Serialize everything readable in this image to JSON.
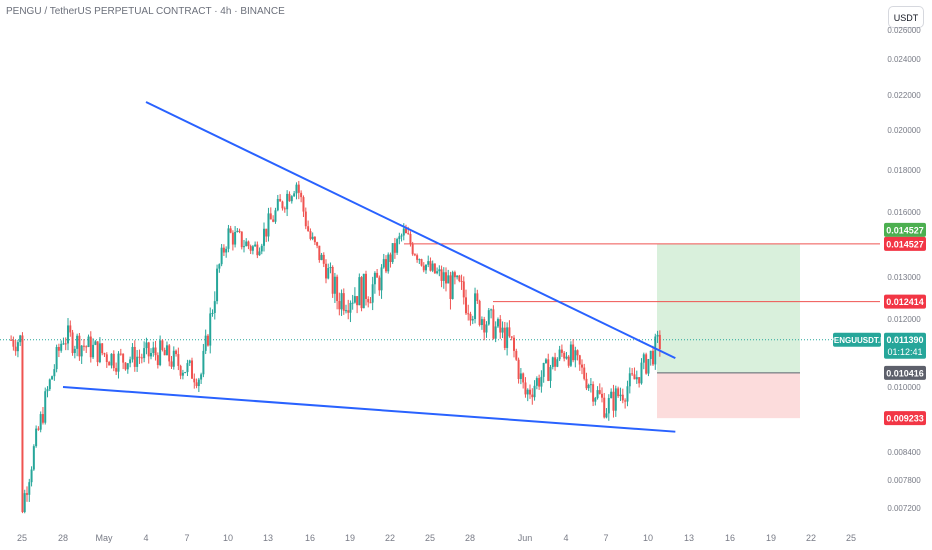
{
  "header": {
    "title": "PENGU / TetherUS PERPETUAL CONTRACT · 4h · BINANCE",
    "currency": "USDT"
  },
  "colors": {
    "up": "#26a69a",
    "down": "#ef5350",
    "trendline": "#2962ff",
    "target_zone": "#d9f0dc",
    "stop_zone": "#fcdcdc",
    "target_line": "#ef5350",
    "axis_text": "#787b86"
  },
  "chart_data": {
    "type": "candlestick",
    "symbol": "PENGUUSDT.P",
    "interval": "4h",
    "exchange": "BINANCE",
    "x_tick_labels": [
      "25",
      "28",
      "May",
      "4",
      "7",
      "10",
      "13",
      "16",
      "19",
      "22",
      "25",
      "28",
      "Jun",
      "4",
      "7",
      "10",
      "13",
      "16",
      "19",
      "22",
      "25"
    ],
    "y_tick_labels": [
      "0.026000",
      "0.024000",
      "0.022000",
      "0.020000",
      "0.018000",
      "0.016000",
      "0.013000",
      "0.012000",
      "0.010000",
      "0.008400",
      "0.007800",
      "0.007200"
    ],
    "ylim": [
      0.0068,
      0.0265
    ],
    "approx_close_path": [
      {
        "x": "Apr 25",
        "y": 0.0072
      },
      {
        "x": "Apr 28",
        "y": 0.0115
      },
      {
        "x": "May 1",
        "y": 0.0108
      },
      {
        "x": "May 4",
        "y": 0.011
      },
      {
        "x": "May 7",
        "y": 0.0103
      },
      {
        "x": "May 9",
        "y": 0.015
      },
      {
        "x": "May 11",
        "y": 0.0143
      },
      {
        "x": "May 14",
        "y": 0.0175
      },
      {
        "x": "May 15",
        "y": 0.0148
      },
      {
        "x": "May 17",
        "y": 0.0125
      },
      {
        "x": "May 20",
        "y": 0.0128
      },
      {
        "x": "May 22",
        "y": 0.015
      },
      {
        "x": "May 24",
        "y": 0.0133
      },
      {
        "x": "May 27",
        "y": 0.0124
      },
      {
        "x": "May 30",
        "y": 0.0113
      },
      {
        "x": "May 31",
        "y": 0.0098
      },
      {
        "x": "Jun 3",
        "y": 0.0111
      },
      {
        "x": "Jun 5",
        "y": 0.01
      },
      {
        "x": "Jun 6",
        "y": 0.0095
      },
      {
        "x": "Jun 8",
        "y": 0.0102
      },
      {
        "x": "Jun 10",
        "y": 0.01139
      }
    ],
    "trendlines": [
      {
        "name": "upper",
        "from": {
          "x": "May 3",
          "y": 0.0216
        },
        "to": {
          "x": "Jun 11",
          "y": 0.01085
        }
      },
      {
        "name": "lower",
        "from": {
          "x": "Apr 28",
          "y": 0.01
        },
        "to": {
          "x": "Jun 11",
          "y": 0.0089
        }
      }
    ],
    "position": {
      "entry": 0.010416,
      "take_profit": 0.014527,
      "stop": 0.009233,
      "intermediate_level": 0.012414
    },
    "price_labels": [
      {
        "text": "0.014527",
        "color": "#4caf50"
      },
      {
        "text": "0.014527",
        "color": "#f23645"
      },
      {
        "text": "0.012414",
        "color": "#f23645"
      },
      {
        "text": "0.010416",
        "color": "#5d606b"
      },
      {
        "text": "0.009233",
        "color": "#f23645"
      }
    ],
    "last_price": {
      "symbol": "PENGUUSDT.P",
      "price": "0.011390",
      "countdown": "01:12:41"
    }
  }
}
